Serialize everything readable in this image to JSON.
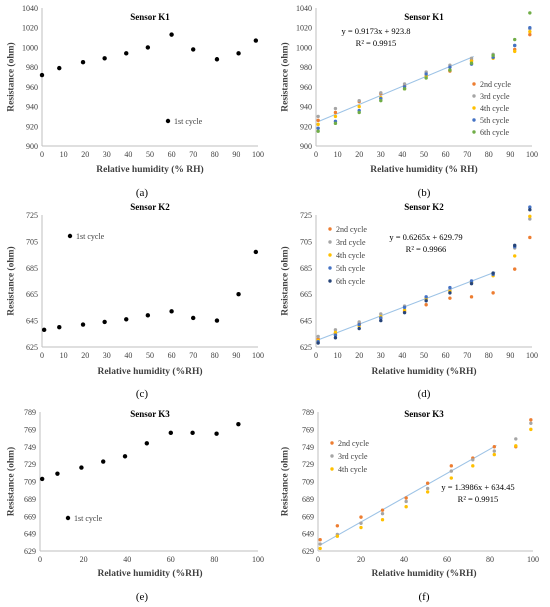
{
  "chart_data": [
    {
      "panel": "(a)",
      "type": "scatter",
      "title": "Sensor K1",
      "xlabel": "Relative humidity (% RH)",
      "ylabel": "Resistance (ohm)",
      "xlim": [
        0,
        100
      ],
      "ylim": [
        900,
        1040
      ],
      "xticks": [
        "0",
        "10",
        "20",
        "30",
        "40",
        "50",
        "60",
        "70",
        "80",
        "90",
        "100"
      ],
      "yticks": [
        "900",
        "920",
        "940",
        "960",
        "980",
        "1000",
        "1020",
        "1040"
      ],
      "grid": false,
      "legend_position": "bottom-right",
      "series": [
        {
          "name": "1st cycle",
          "color": "#000000",
          "x": [
            0,
            8,
            19,
            29,
            39,
            49,
            60,
            70,
            81,
            91,
            99
          ],
          "y": [
            972,
            979,
            985,
            989,
            994,
            1000,
            1013,
            998,
            988,
            994,
            1007
          ]
        }
      ]
    },
    {
      "panel": "(b)",
      "type": "scatter",
      "title": "Sensor K1",
      "xlabel": "Relative humidity (% RH)",
      "ylabel": "Resistance (ohm)",
      "xlim": [
        0,
        100
      ],
      "ylim": [
        900,
        1040
      ],
      "xticks": [
        "0",
        "10",
        "20",
        "30",
        "40",
        "50",
        "60",
        "70",
        "80",
        "90",
        "100"
      ],
      "yticks": [
        "900",
        "920",
        "940",
        "960",
        "980",
        "1000",
        "1020",
        "1040"
      ],
      "grid": false,
      "legend_position": "bottom-right",
      "annotation": [
        "y = 0.9173x + 923.8",
        "R² = 0.9915"
      ],
      "trendline": {
        "slope": 0.9173,
        "intercept": 923.8,
        "x_range": [
          1,
          73
        ],
        "color": "#9dc3e6"
      },
      "series": [
        {
          "name": "2nd cycle",
          "color": "#ed7d31",
          "x": [
            1,
            9,
            20,
            30,
            41,
            51,
            62,
            72,
            82,
            92,
            99
          ],
          "y": [
            926,
            934,
            945,
            953,
            961,
            971,
            976,
            987,
            990,
            998,
            1013
          ]
        },
        {
          "name": "3rd cycle",
          "color": "#a5a5a5",
          "x": [
            1,
            9,
            20,
            30,
            41,
            51,
            62,
            72,
            82,
            92,
            99
          ],
          "y": [
            930,
            938,
            946,
            954,
            963,
            975,
            982,
            989,
            993,
            1002,
            1019
          ]
        },
        {
          "name": "4th cycle",
          "color": "#ffc000",
          "x": [
            1,
            9,
            20,
            30,
            41,
            51,
            62,
            72,
            82,
            92,
            99
          ],
          "y": [
            922,
            930,
            940,
            949,
            958,
            971,
            977,
            986,
            989,
            996,
            1016
          ]
        },
        {
          "name": "5th cycle",
          "color": "#4472c4",
          "x": [
            1,
            9,
            20,
            30,
            41,
            51,
            62,
            72,
            82,
            92,
            99
          ],
          "y": [
            918,
            925,
            936,
            948,
            960,
            973,
            980,
            983,
            990,
            1002,
            1020
          ]
        },
        {
          "name": "6th cycle",
          "color": "#70ad47",
          "x": [
            1,
            9,
            20,
            30,
            41,
            51,
            62,
            72,
            82,
            92,
            99
          ],
          "y": [
            915,
            923,
            934,
            946,
            958,
            969,
            977,
            984,
            992,
            1008,
            1035
          ]
        }
      ]
    },
    {
      "panel": "(c)",
      "type": "scatter",
      "title": "Sensor K2",
      "xlabel": "Relative humidity (%RH)",
      "ylabel": "Resistance (ohm)",
      "xlim": [
        0,
        100
      ],
      "ylim": [
        625,
        725
      ],
      "xticks": [
        "0",
        "10",
        "20",
        "30",
        "40",
        "50",
        "60",
        "70",
        "80",
        "90",
        "100"
      ],
      "yticks": [
        "625",
        "645",
        "665",
        "685",
        "705",
        "725"
      ],
      "grid": false,
      "legend_position": "top-left",
      "series": [
        {
          "name": "1st cycle",
          "color": "#000000",
          "x": [
            1,
            8,
            19,
            29,
            39,
            49,
            60,
            70,
            81,
            91,
            99
          ],
          "y": [
            638,
            640,
            642,
            644,
            646,
            649,
            652,
            647,
            645,
            665,
            697
          ]
        }
      ]
    },
    {
      "panel": "(d)",
      "type": "scatter",
      "title": "Sensor K2",
      "xlabel": "Relative humidity (%RH)",
      "ylabel": "Resistance (ohm)",
      "xlim": [
        0,
        100
      ],
      "ylim": [
        625,
        725
      ],
      "xticks": [
        "0",
        "10",
        "20",
        "30",
        "40",
        "50",
        "60",
        "70",
        "80",
        "90",
        "100"
      ],
      "yticks": [
        "625",
        "645",
        "665",
        "685",
        "705",
        "725"
      ],
      "grid": false,
      "legend_position": "top-left",
      "annotation": [
        "y = 0.6265x + 629.79",
        "R² = 0.9966"
      ],
      "trendline": {
        "slope": 0.6265,
        "intercept": 629.79,
        "x_range": [
          1,
          83
        ],
        "color": "#9dc3e6"
      },
      "series": [
        {
          "name": "2nd cycle",
          "color": "#ed7d31",
          "x": [
            1,
            9,
            20,
            30,
            41,
            51,
            62,
            72,
            82,
            92,
            99
          ],
          "y": [
            631,
            635,
            643,
            647,
            652,
            657,
            662,
            663,
            666,
            684,
            708
          ]
        },
        {
          "name": "3rd cycle",
          "color": "#a5a5a5",
          "x": [
            1,
            9,
            20,
            30,
            41,
            51,
            62,
            72,
            82,
            92,
            99
          ],
          "y": [
            633,
            638,
            644,
            650,
            656,
            661,
            668,
            674,
            680,
            700,
            722
          ]
        },
        {
          "name": "4th cycle",
          "color": "#ffc000",
          "x": [
            1,
            9,
            20,
            30,
            41,
            51,
            62,
            72,
            82,
            92,
            99
          ],
          "y": [
            630,
            636,
            641,
            648,
            653,
            662,
            667,
            674,
            679,
            694,
            724
          ]
        },
        {
          "name": "5th cycle",
          "color": "#4472c4",
          "x": [
            1,
            9,
            20,
            30,
            41,
            51,
            62,
            72,
            82,
            92,
            99
          ],
          "y": [
            629,
            634,
            642,
            647,
            655,
            663,
            670,
            675,
            680,
            701,
            731
          ]
        },
        {
          "name": "6th cycle",
          "color": "#264478",
          "x": [
            1,
            9,
            20,
            30,
            41,
            51,
            62,
            72,
            82,
            92,
            99
          ],
          "y": [
            628,
            632,
            639,
            645,
            651,
            660,
            666,
            673,
            681,
            702,
            729
          ]
        }
      ]
    },
    {
      "panel": "(e)",
      "type": "scatter",
      "title": "Sensor K3",
      "xlabel": "Relative humidity (%RH)",
      "ylabel": "Resistance (ohm)",
      "xlim": [
        0,
        100
      ],
      "ylim": [
        629,
        789
      ],
      "xticks": [
        "0",
        "20",
        "40",
        "60",
        "80",
        "100"
      ],
      "yticks": [
        "629",
        "649",
        "669",
        "689",
        "709",
        "729",
        "749",
        "769",
        "789"
      ],
      "grid": false,
      "legend_position": "bottom-left",
      "series": [
        {
          "name": "1st cycle",
          "color": "#000000",
          "x": [
            1,
            8,
            19,
            29,
            39,
            49,
            60,
            70,
            81,
            91
          ],
          "y": [
            712,
            718,
            725,
            732,
            738,
            753,
            765,
            765,
            764,
            775
          ]
        }
      ]
    },
    {
      "panel": "(f)",
      "type": "scatter",
      "title": "Sensor K3",
      "xlabel": "Relative humidity (%RH)",
      "ylabel": "Resistance (ohm)",
      "xlim": [
        0,
        100
      ],
      "ylim": [
        629,
        789
      ],
      "xticks": [
        "0",
        "20",
        "40",
        "60",
        "80",
        "100"
      ],
      "yticks": [
        "629",
        "649",
        "669",
        "689",
        "709",
        "729",
        "749",
        "769",
        "789"
      ],
      "grid": false,
      "legend_position": "top-left",
      "annotation": [
        "y = 1.3986x + 634.45",
        "R² = 0.9915"
      ],
      "trendline": {
        "slope": 1.3986,
        "intercept": 634.45,
        "x_range": [
          1,
          83
        ],
        "color": "#9dc3e6"
      },
      "series": [
        {
          "name": "2nd cycle",
          "color": "#ed7d31",
          "x": [
            1,
            9,
            20,
            30,
            41,
            51,
            62,
            72,
            82,
            92,
            99
          ],
          "y": [
            642,
            658,
            668,
            676,
            690,
            707,
            727,
            736,
            749,
            749,
            780
          ]
        },
        {
          "name": "3rd cycle",
          "color": "#a5a5a5",
          "x": [
            1,
            9,
            20,
            30,
            41,
            51,
            62,
            72,
            82,
            92,
            99
          ],
          "y": [
            637,
            648,
            661,
            672,
            686,
            701,
            721,
            734,
            744,
            758,
            776
          ]
        },
        {
          "name": "4th cycle",
          "color": "#ffc000",
          "x": [
            1,
            9,
            20,
            30,
            41,
            51,
            62,
            72,
            82,
            92,
            99
          ],
          "y": [
            632,
            646,
            656,
            665,
            680,
            697,
            713,
            727,
            740,
            750,
            769
          ]
        }
      ]
    }
  ]
}
